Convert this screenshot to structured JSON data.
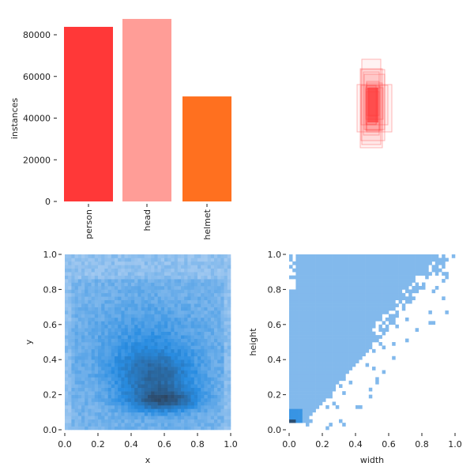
{
  "chart_data": [
    {
      "type": "bar",
      "title": "",
      "xlabel": "",
      "ylabel": "instances",
      "categories": [
        "person",
        "head",
        "helmet"
      ],
      "values": [
        83800,
        87600,
        50400
      ],
      "colors": [
        "#ff3838",
        "#ff9d97",
        "#ff701f"
      ],
      "ylim": [
        0,
        88000
      ],
      "yticks": [
        "0",
        "20000",
        "40000",
        "60000",
        "80000"
      ]
    },
    {
      "type": "scatter",
      "title": "",
      "description_of_marks": "overlaid bounding boxes",
      "color": "#ff3838"
    },
    {
      "type": "heatmap",
      "xlabel": "x",
      "ylabel": "y",
      "xlim": [
        0,
        1
      ],
      "ylim": [
        0,
        1
      ],
      "xticks": [
        "0.0",
        "0.2",
        "0.4",
        "0.6",
        "0.8",
        "1.0"
      ],
      "yticks": [
        "0.0",
        "0.2",
        "0.4",
        "0.6",
        "0.8",
        "1.0"
      ],
      "peak": [
        0.6,
        0.15
      ]
    },
    {
      "type": "heatmap",
      "xlabel": "width",
      "ylabel": "height",
      "xlim": [
        0,
        1
      ],
      "ylim": [
        0,
        1
      ],
      "xticks": [
        "0.0",
        "0.2",
        "0.4",
        "0.6",
        "0.8",
        "1.0"
      ],
      "yticks": [
        "0.0",
        "0.2",
        "0.4",
        "0.6",
        "0.8",
        "1.0"
      ],
      "peak": [
        0.02,
        0.04
      ]
    }
  ]
}
